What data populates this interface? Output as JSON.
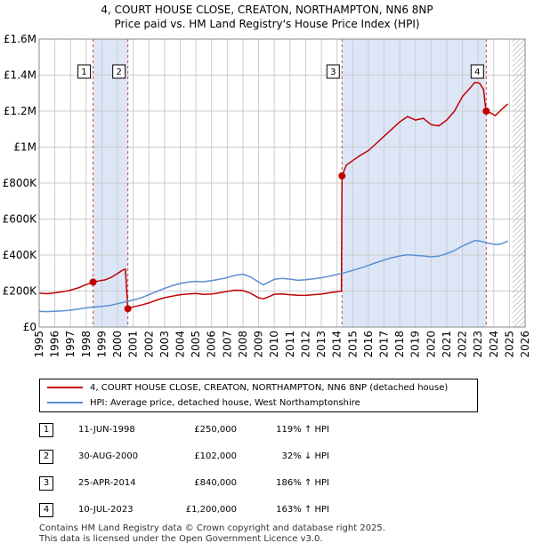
{
  "title_line1": "4, COURT HOUSE CLOSE, CREATON, NORTHAMPTON, NN6 8NP",
  "title_line2": "Price paid vs. HM Land Registry's House Price Index (HPI)",
  "chart_data": {
    "type": "line",
    "title": "4, COURT HOUSE CLOSE, CREATON, NORTHAMPTON, NN6 8NP",
    "subtitle": "Price paid vs. HM Land Registry's House Price Index (HPI)",
    "xlim": [
      1995,
      2026
    ],
    "ylim": [
      0,
      1600000
    ],
    "x_ticks": [
      1995,
      1996,
      1997,
      1998,
      1999,
      2000,
      2001,
      2002,
      2003,
      2004,
      2005,
      2006,
      2007,
      2008,
      2009,
      2010,
      2011,
      2012,
      2013,
      2014,
      2015,
      2016,
      2017,
      2018,
      2019,
      2020,
      2021,
      2022,
      2023,
      2024,
      2025,
      2026
    ],
    "y_ticks": [
      {
        "value": 0,
        "label": "£0"
      },
      {
        "value": 200000,
        "label": "£200K"
      },
      {
        "value": 400000,
        "label": "£400K"
      },
      {
        "value": 600000,
        "label": "£600K"
      },
      {
        "value": 800000,
        "label": "£800K"
      },
      {
        "value": 1000000,
        "label": "£1M"
      },
      {
        "value": 1200000,
        "label": "£1.2M"
      },
      {
        "value": 1400000,
        "label": "£1.4M"
      },
      {
        "value": 1600000,
        "label": "£1.6M"
      }
    ],
    "grid": true,
    "future_hatch_from": 2025.2,
    "shaded_periods": [
      [
        1998.44,
        2000.66
      ],
      [
        2014.32,
        2023.52
      ]
    ],
    "series": [
      {
        "name": "4, COURT HOUSE CLOSE, CREATON, NORTHAMPTON, NN6 8NP (detached house)",
        "color": "#c00000",
        "points": [
          [
            1995.0,
            188000
          ],
          [
            1995.5,
            185000
          ],
          [
            1996.0,
            190000
          ],
          [
            1996.5,
            196000
          ],
          [
            1997.0,
            205000
          ],
          [
            1997.5,
            218000
          ],
          [
            1998.0,
            236000
          ],
          [
            1998.44,
            250000
          ],
          [
            1998.8,
            256000
          ],
          [
            1999.2,
            262000
          ],
          [
            1999.6,
            276000
          ],
          [
            2000.0,
            298000
          ],
          [
            2000.3,
            315000
          ],
          [
            2000.5,
            322000
          ],
          [
            2000.6,
            185000
          ],
          [
            2000.66,
            102000
          ],
          [
            2001.0,
            112000
          ],
          [
            2001.5,
            122000
          ],
          [
            2002.0,
            134000
          ],
          [
            2002.5,
            150000
          ],
          [
            2003.0,
            163000
          ],
          [
            2003.5,
            172000
          ],
          [
            2004.0,
            180000
          ],
          [
            2004.5,
            184000
          ],
          [
            2005.0,
            186000
          ],
          [
            2005.5,
            181000
          ],
          [
            2006.0,
            183000
          ],
          [
            2006.5,
            190000
          ],
          [
            2007.0,
            198000
          ],
          [
            2007.5,
            205000
          ],
          [
            2008.0,
            203000
          ],
          [
            2008.5,
            187000
          ],
          [
            2009.0,
            162000
          ],
          [
            2009.3,
            157000
          ],
          [
            2009.7,
            170000
          ],
          [
            2010.0,
            182000
          ],
          [
            2010.5,
            184000
          ],
          [
            2011.0,
            180000
          ],
          [
            2011.5,
            177000
          ],
          [
            2012.0,
            176000
          ],
          [
            2012.5,
            180000
          ],
          [
            2013.0,
            183000
          ],
          [
            2013.5,
            190000
          ],
          [
            2014.0,
            196000
          ],
          [
            2014.28,
            200000
          ],
          [
            2014.32,
            840000
          ],
          [
            2014.6,
            900000
          ],
          [
            2015.0,
            925000
          ],
          [
            2015.5,
            955000
          ],
          [
            2016.0,
            980000
          ],
          [
            2016.5,
            1020000
          ],
          [
            2017.0,
            1060000
          ],
          [
            2017.5,
            1100000
          ],
          [
            2018.0,
            1140000
          ],
          [
            2018.5,
            1170000
          ],
          [
            2019.0,
            1150000
          ],
          [
            2019.5,
            1160000
          ],
          [
            2020.0,
            1125000
          ],
          [
            2020.5,
            1118000
          ],
          [
            2021.0,
            1150000
          ],
          [
            2021.5,
            1200000
          ],
          [
            2022.0,
            1280000
          ],
          [
            2022.5,
            1330000
          ],
          [
            2022.8,
            1360000
          ],
          [
            2023.1,
            1355000
          ],
          [
            2023.35,
            1320000
          ],
          [
            2023.45,
            1240000
          ],
          [
            2023.52,
            1200000
          ],
          [
            2023.8,
            1190000
          ],
          [
            2024.1,
            1175000
          ],
          [
            2024.4,
            1200000
          ],
          [
            2024.7,
            1225000
          ],
          [
            2024.9,
            1240000
          ]
        ]
      },
      {
        "name": "HPI: Average price, detached house, West Northamptonshire",
        "color": "#5b8fd0",
        "points": [
          [
            1995.0,
            87000
          ],
          [
            1995.5,
            86000
          ],
          [
            1996.0,
            88000
          ],
          [
            1996.5,
            90000
          ],
          [
            1997.0,
            94000
          ],
          [
            1997.5,
            100000
          ],
          [
            1998.0,
            106000
          ],
          [
            1998.5,
            111000
          ],
          [
            1999.0,
            115000
          ],
          [
            1999.5,
            120000
          ],
          [
            2000.0,
            130000
          ],
          [
            2000.5,
            140000
          ],
          [
            2001.0,
            150000
          ],
          [
            2001.5,
            162000
          ],
          [
            2002.0,
            180000
          ],
          [
            2002.5,
            198000
          ],
          [
            2003.0,
            215000
          ],
          [
            2003.5,
            230000
          ],
          [
            2004.0,
            242000
          ],
          [
            2004.5,
            250000
          ],
          [
            2005.0,
            254000
          ],
          [
            2005.5,
            252000
          ],
          [
            2006.0,
            258000
          ],
          [
            2006.5,
            265000
          ],
          [
            2007.0,
            275000
          ],
          [
            2007.5,
            288000
          ],
          [
            2008.0,
            294000
          ],
          [
            2008.5,
            278000
          ],
          [
            2009.0,
            250000
          ],
          [
            2009.3,
            234000
          ],
          [
            2009.7,
            252000
          ],
          [
            2010.0,
            265000
          ],
          [
            2010.5,
            270000
          ],
          [
            2011.0,
            266000
          ],
          [
            2011.5,
            260000
          ],
          [
            2012.0,
            263000
          ],
          [
            2012.5,
            268000
          ],
          [
            2013.0,
            274000
          ],
          [
            2013.5,
            282000
          ],
          [
            2014.0,
            292000
          ],
          [
            2014.5,
            302000
          ],
          [
            2015.0,
            315000
          ],
          [
            2015.5,
            328000
          ],
          [
            2016.0,
            342000
          ],
          [
            2016.5,
            358000
          ],
          [
            2017.0,
            372000
          ],
          [
            2017.5,
            385000
          ],
          [
            2018.0,
            395000
          ],
          [
            2018.5,
            402000
          ],
          [
            2019.0,
            398000
          ],
          [
            2019.5,
            395000
          ],
          [
            2020.0,
            390000
          ],
          [
            2020.5,
            394000
          ],
          [
            2021.0,
            408000
          ],
          [
            2021.5,
            425000
          ],
          [
            2022.0,
            450000
          ],
          [
            2022.5,
            470000
          ],
          [
            2022.8,
            480000
          ],
          [
            2023.1,
            478000
          ],
          [
            2023.5,
            470000
          ],
          [
            2024.0,
            460000
          ],
          [
            2024.4,
            460000
          ],
          [
            2024.7,
            470000
          ],
          [
            2024.9,
            478000
          ]
        ]
      }
    ],
    "transactions": [
      {
        "num": "1",
        "x": 1998.44,
        "price": 250000
      },
      {
        "num": "2",
        "x": 2000.66,
        "price": 102000
      },
      {
        "num": "3",
        "x": 2014.32,
        "price": 840000
      },
      {
        "num": "4",
        "x": 2023.52,
        "price": 1200000
      }
    ]
  },
  "legend": {
    "property_label": "4, COURT HOUSE CLOSE, CREATON, NORTHAMPTON, NN6 8NP (detached house)",
    "hpi_label": "HPI: Average price, detached house, West Northamptonshire"
  },
  "table": [
    {
      "num": "1",
      "date": "11-JUN-1998",
      "price": "£250,000",
      "hpi": "119% ↑ HPI"
    },
    {
      "num": "2",
      "date": "30-AUG-2000",
      "price": "£102,000",
      "hpi": "32% ↓ HPI"
    },
    {
      "num": "3",
      "date": "25-APR-2014",
      "price": "£840,000",
      "hpi": "186% ↑ HPI"
    },
    {
      "num": "4",
      "date": "10-JUL-2023",
      "price": "£1,200,000",
      "hpi": "163% ↑ HPI"
    }
  ],
  "footer_line1": "Contains HM Land Registry data © Crown copyright and database right 2025.",
  "footer_line2": "This data is licensed under the Open Government Licence v3.0.",
  "colors": {
    "property": "#c00000",
    "hpi": "#5b8fd0",
    "shade": "#dde6f7",
    "grid": "#cccccc",
    "vline": "#d04040"
  }
}
